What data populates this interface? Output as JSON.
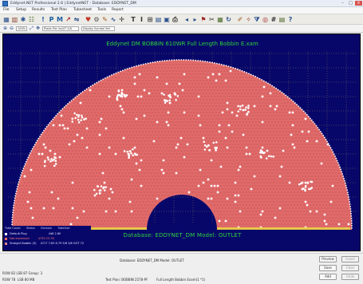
{
  "window": {
    "title": "Eddynet.NET Professional 2.6 | EddynetNET - Database: EDDYNET_DM",
    "controls": [
      "–",
      "□",
      "×"
    ]
  },
  "menu": [
    "File",
    "Setup",
    "Results",
    "Test Plan",
    "Tubesheet",
    "Tools",
    "Report"
  ],
  "toolbar": {
    "icons": [
      {
        "name": "grid-icon",
        "glyph": "▦",
        "color": "#2a4f8c"
      },
      {
        "name": "chart-icon",
        "glyph": "▥",
        "color": "#8a3b2a"
      },
      {
        "name": "settings-icon",
        "glyph": "✱",
        "color": "#2a4f8c"
      },
      {
        "name": "tubesheet-icon",
        "glyph": "☷",
        "color": "#4b6a2a"
      },
      {
        "name": "pin-icon",
        "glyph": "!",
        "color": "#1b5c9e"
      },
      {
        "name": "P-icon",
        "glyph": "P",
        "color": "#1b5c9e"
      },
      {
        "name": "M-icon",
        "glyph": "M",
        "color": "#1b5c9e"
      },
      {
        "name": "marker-icon",
        "glyph": "↗",
        "color": "#a02222"
      },
      {
        "name": "mirror-icon",
        "glyph": "⇋",
        "color": "#2a4f8c"
      },
      {
        "name": "heart-icon",
        "glyph": "♥",
        "color": "#c0392b"
      },
      {
        "name": "tool-icon",
        "glyph": "⚙",
        "color": "#555555"
      },
      {
        "name": "draw-icon",
        "glyph": "✎",
        "color": "#a05a1a"
      },
      {
        "name": "wave-icon",
        "glyph": "∿",
        "color": "#2a4f8c"
      },
      {
        "name": "crosshair-icon",
        "glyph": "✛",
        "color": "#333333"
      },
      {
        "name": "T-icon",
        "glyph": "T",
        "color": "#333333"
      },
      {
        "name": "I-icon",
        "glyph": "I",
        "color": "#333333"
      },
      {
        "name": "table-icon",
        "glyph": "⊞",
        "color": "#333333"
      },
      {
        "name": "layers-icon",
        "glyph": "▤",
        "color": "#2a4f8c"
      },
      {
        "name": "image-icon",
        "glyph": "▣",
        "color": "#2a4f8c"
      },
      {
        "name": "print-icon",
        "glyph": "⎙",
        "color": "#333333"
      },
      {
        "name": "arrow-left-icon",
        "glyph": "◂",
        "color": "#2a4f8c"
      },
      {
        "name": "arrow-right-icon",
        "glyph": "▸",
        "color": "#2a4f8c"
      },
      {
        "name": "flag-icon",
        "glyph": "⚑",
        "color": "#a02222"
      },
      {
        "name": "cut-icon",
        "glyph": "✂",
        "color": "#333333"
      },
      {
        "name": "grid2-icon",
        "glyph": "▦",
        "color": "#4b6a2a"
      },
      {
        "name": "refresh-icon",
        "glyph": "↻",
        "color": "#2a4f8c"
      },
      {
        "name": "pencil-icon",
        "glyph": "✐",
        "color": "#a05a1a"
      },
      {
        "name": "magic-icon",
        "glyph": "✧",
        "color": "#8a3b2a"
      },
      {
        "name": "filter-icon",
        "glyph": "⧩",
        "color": "#2a4f8c"
      },
      {
        "name": "target-icon",
        "glyph": "◎",
        "color": "#a02222"
      },
      {
        "name": "hash-icon",
        "glyph": "#",
        "color": "#333333"
      },
      {
        "name": "report-icon",
        "glyph": "▤",
        "color": "#4b6a2a"
      },
      {
        "name": "help-icon",
        "glyph": "?",
        "color": "#2a4f8c"
      }
    ]
  },
  "subtoolbar": {
    "zoom_value": "100%",
    "plot_fieldset_label": "Plade File Insl/IT 2/8",
    "display_label": "Display Symbol Set"
  },
  "plot": {
    "title": "Eddynet DM BOBBIN 610WR Full Length Bobbin E.xam",
    "database_line": "Database: EDDYNET_DM  Model:   OUTLET",
    "background": "#07076a",
    "tube_color": "#e06a6a",
    "plugged_color": "#ffffff",
    "grid_color": "#b8a24a"
  },
  "legend": {
    "header": [
      "Tube Count",
      "Status",
      "Division",
      "TubeSize"
    ],
    "rows": [
      {
        "label": "Default Plug",
        "values": "446    2.60",
        "color": "#ffffff"
      },
      {
        "label": "Not examined",
        "values": "4755  23.30",
        "color": "#ff6a6a"
      },
      {
        "label": "Straight Bobbin (5)",
        "values": "4717 7.63   8.79 5/6   3/8  GOT 72",
        "color": "#e08a8a"
      }
    ]
  },
  "status": {
    "database_line": "Database: EDDYNET_DM  Model:   OUTLET",
    "row1": "ROW 82 LSB 87 Group: 3",
    "row2": "ROW 78",
    "row2b": "LSB  80  MB",
    "testplan": "Test Plan: BOBBIN  2578-PF",
    "fulllength": "Full Length Bobbin Exam(1 *1)",
    "buttons": [
      {
        "name": "preview-button",
        "label": "Preview",
        "dim": false
      },
      {
        "name": "insert-button",
        "label": "Insert",
        "dim": true
      },
      {
        "name": "save-button",
        "label": "Save",
        "dim": false
      },
      {
        "name": "clear-button",
        "label": "Clear",
        "dim": true
      },
      {
        "name": "add-button",
        "label": "Add",
        "dim": false
      },
      {
        "name": "undo-button",
        "label": "Undo",
        "dim": true
      }
    ]
  }
}
